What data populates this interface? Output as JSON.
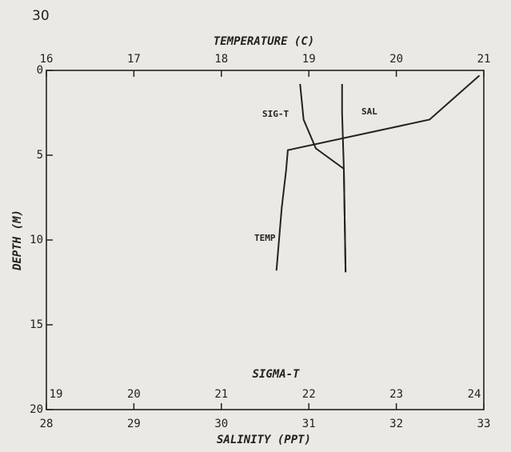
{
  "page_number": "30",
  "chart_data": {
    "type": "line",
    "axes": {
      "temperature": {
        "label": "TEMPERATURE (C)",
        "lim": [
          16,
          21
        ],
        "ticks": [
          16,
          17,
          18,
          19,
          20,
          21
        ]
      },
      "salinity": {
        "label": "SALINITY (PPT)",
        "lim": [
          28,
          33
        ],
        "ticks": [
          28,
          29,
          30,
          31,
          32,
          33
        ]
      },
      "sigma_t": {
        "label": "SIGMA-T",
        "lim": [
          19,
          24
        ],
        "ticks": [
          19,
          20,
          21,
          22,
          23,
          24
        ]
      },
      "depth": {
        "label": "DEPTH (M)",
        "lim": [
          0,
          20
        ],
        "ticks": [
          0,
          5,
          10,
          15,
          20
        ],
        "inverted": true
      }
    },
    "series": [
      {
        "name": "TEMP",
        "axis": "temperature",
        "color": "#222222",
        "x": [
          20.95,
          20.38,
          18.76,
          18.74,
          18.69,
          18.63
        ],
        "y": [
          0.3,
          2.9,
          4.7,
          5.9,
          8.1,
          11.8
        ]
      },
      {
        "name": "SAL",
        "axis": "salinity",
        "color": "#222222",
        "x": [
          31.38,
          31.38,
          31.4,
          31.42
        ],
        "y": [
          0.8,
          2.5,
          5.8,
          11.9
        ]
      },
      {
        "name": "SIG-T",
        "axis": "sigma_t",
        "color": "#222222",
        "x": [
          21.9,
          21.94,
          22.08,
          22.4,
          22.42
        ],
        "y": [
          0.8,
          2.9,
          4.6,
          5.8,
          11.9
        ]
      }
    ]
  }
}
